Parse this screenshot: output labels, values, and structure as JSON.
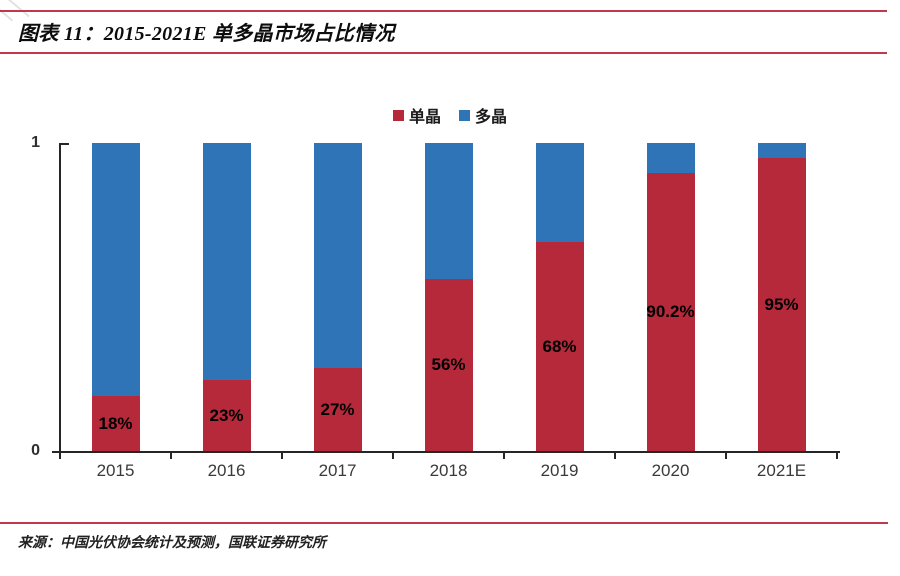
{
  "header": {
    "title": "图表 11：2015-2021E 单多晶市场占比情况"
  },
  "footer": {
    "source": "来源：中国光伏协会统计及预测，国联证券研究所"
  },
  "colors": {
    "mono_red": "#b5293b",
    "poly_blue": "#2e74b6",
    "rule_red": "#c0394a",
    "axis": "#262626"
  },
  "chart_data": {
    "type": "bar",
    "stacked": true,
    "title": "2015-2021E 单多晶市场占比情况",
    "categories": [
      "2015",
      "2016",
      "2017",
      "2018",
      "2019",
      "2020",
      "2021E"
    ],
    "series": [
      {
        "name": "单晶",
        "color": "#b5293b",
        "values": [
          0.18,
          0.23,
          0.27,
          0.56,
          0.68,
          0.902,
          0.95
        ],
        "labels": [
          "18%",
          "23%",
          "27%",
          "56%",
          "68%",
          "90.2%",
          "95%"
        ]
      },
      {
        "name": "多晶",
        "color": "#2e74b6",
        "values": [
          0.82,
          0.77,
          0.73,
          0.44,
          0.32,
          0.098,
          0.05
        ],
        "labels": []
      }
    ],
    "xlabel": "",
    "ylabel": "",
    "ylim": [
      0,
      1
    ],
    "yticks": [
      "0",
      "1"
    ],
    "legend_position": "top",
    "grid": false,
    "label_placement": "center-of-mono-segment"
  }
}
